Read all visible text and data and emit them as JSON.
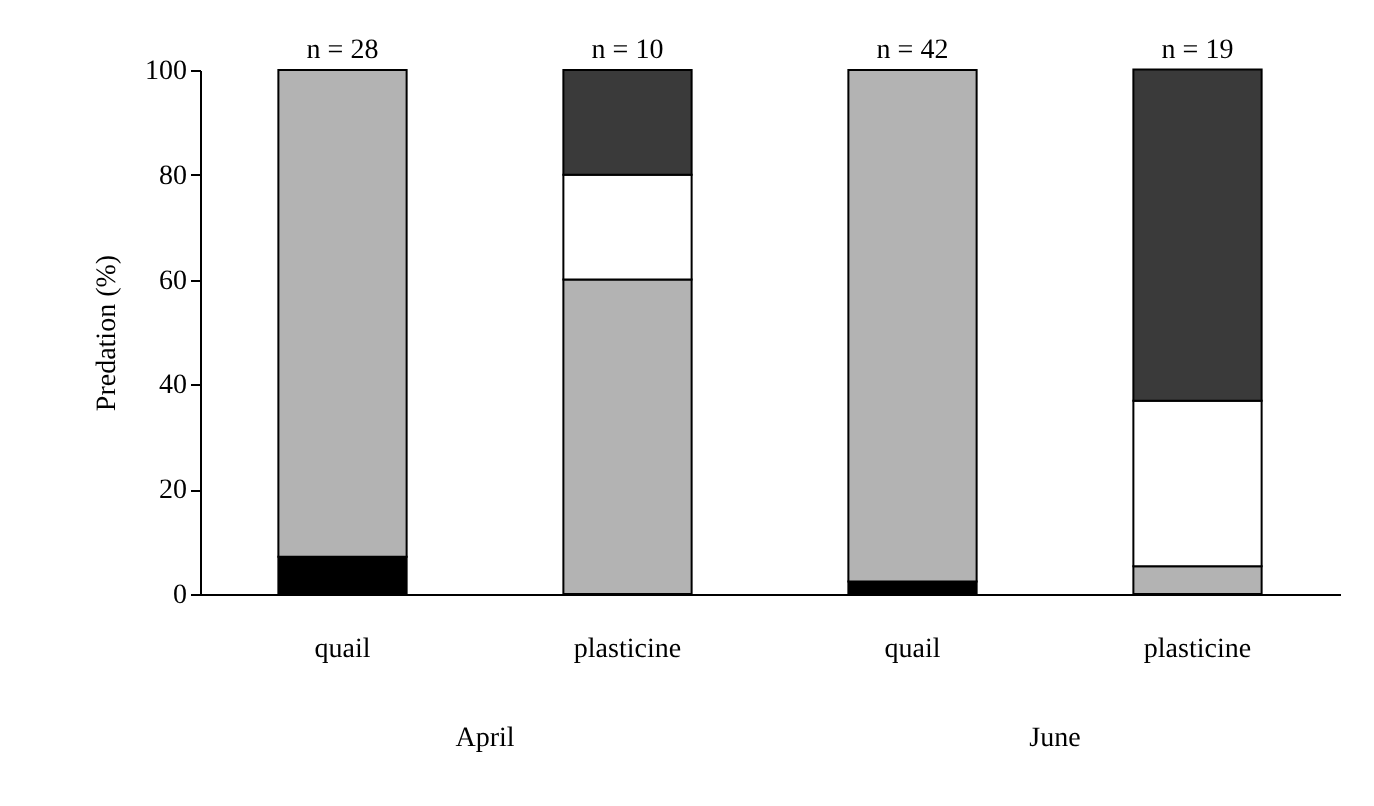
{
  "chart_data": {
    "type": "bar",
    "stacked": true,
    "ylabel": "Predation (%)",
    "categories": [
      "quail",
      "plasticine",
      "quail",
      "plasticine"
    ],
    "series": [
      {
        "color": "#000000",
        "values": [
          7.1,
          null,
          2.4,
          null
        ]
      },
      {
        "color": "#b3b3b3",
        "values": [
          92.9,
          60,
          97.6,
          5.3
        ]
      },
      {
        "color": "#ffffff",
        "values": [
          null,
          20,
          null,
          31.6
        ]
      },
      {
        "color": "#3a3a3a",
        "values": [
          null,
          20,
          null,
          63.2
        ]
      }
    ],
    "annotations": [
      "n = 28",
      "n = 10",
      "n = 42",
      "n = 19",
      "April",
      "June"
    ],
    "ylim": [
      0,
      100
    ],
    "yticks": [
      0,
      20,
      40,
      60,
      80,
      100
    ],
    "grid": false,
    "legend": false
  }
}
